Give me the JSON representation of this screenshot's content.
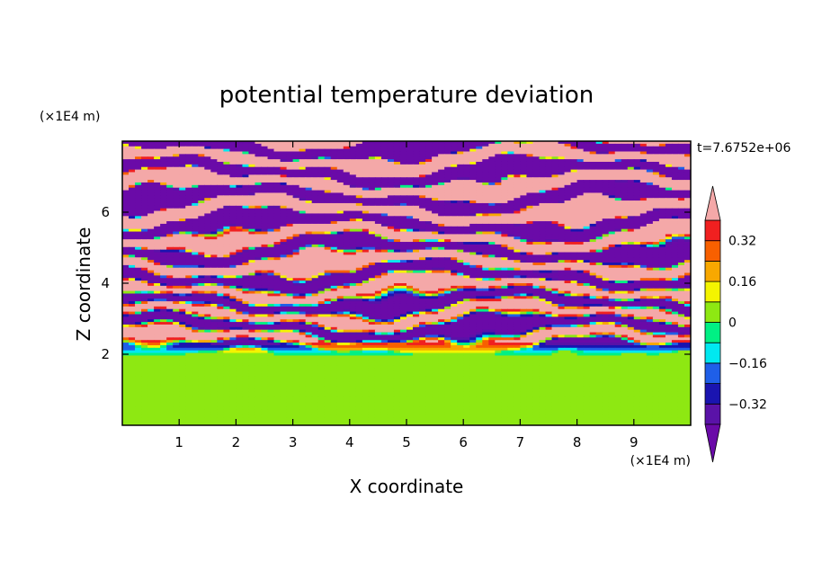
{
  "chart_data": {
    "type": "heatmap",
    "title": "potential temperature deviation",
    "xlabel": "X coordinate",
    "ylabel": "Z coordinate",
    "x_unit": "(×1E4 m)",
    "z_unit": "(×1E4 m)",
    "time_label": "t=7.6752e+06",
    "xlim": [
      0,
      10
    ],
    "ylim": [
      0,
      8
    ],
    "x_ticks": [
      1,
      2,
      3,
      4,
      5,
      6,
      7,
      8,
      9
    ],
    "y_ticks": [
      2,
      4,
      6
    ],
    "colorbar": {
      "levels": [
        -0.4,
        -0.32,
        -0.24,
        -0.16,
        -0.08,
        0,
        0.08,
        0.16,
        0.24,
        0.32,
        0.4
      ],
      "colors": [
        "#6a0aa8",
        "#5a12a8",
        "#1a14b0",
        "#1f5fe8",
        "#00e8f0",
        "#00f084",
        "#8ee812",
        "#f4f400",
        "#f8a800",
        "#f86000",
        "#f02020",
        "#f4a8a8"
      ],
      "labels": [
        "0.32",
        "0.16",
        "0",
        "−0.16",
        "−0.32"
      ],
      "label_values": [
        0.32,
        0.16,
        0,
        -0.16,
        -0.32
      ],
      "extend": "both"
    },
    "field_summary": {
      "below_z_2": "near-zero deviation (green/light-green turbulent patches)",
      "z_2_to_8": "horizontally layered alternating bands of about +0.4 (pink) and -0.4 (purple) with mixed colors between"
    }
  }
}
